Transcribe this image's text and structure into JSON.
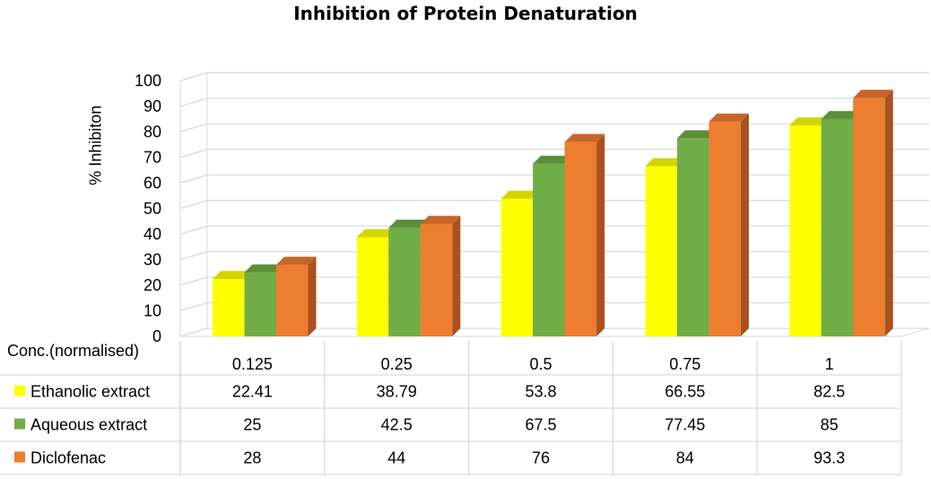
{
  "chart_data": {
    "type": "bar",
    "title": "Inhibition of Protein Denaturation",
    "xlabel": "Conc.(normalised)",
    "ylabel": "% Inhibiton",
    "ylim": [
      0,
      100
    ],
    "yticks": [
      "0",
      "10",
      "20",
      "30",
      "40",
      "50",
      "60",
      "70",
      "80",
      "90",
      "100"
    ],
    "categories": [
      "0.125",
      "0.25",
      "0.5",
      "0.75",
      "1"
    ],
    "series": [
      {
        "name": "Ethanolic extract",
        "values": [
          22.41,
          38.79,
          53.8,
          66.55,
          82.5
        ],
        "labels": [
          "22.41",
          "38.79",
          "53.8",
          "66.55",
          "82.5"
        ],
        "color": "#FFFF00",
        "top": "#D4D400",
        "side": "#A8A800"
      },
      {
        "name": "Aqueous extract",
        "values": [
          25,
          42.5,
          67.5,
          77.45,
          85
        ],
        "labels": [
          "25",
          "42.5",
          "67.5",
          "77.45",
          "85"
        ],
        "color": "#70AD47",
        "top": "#5B8F38",
        "side": "#4A7A2E"
      },
      {
        "name": "Diclofenac",
        "values": [
          28,
          44,
          76,
          84,
          93.3
        ],
        "labels": [
          "28",
          "44",
          "76",
          "84",
          "93.3"
        ],
        "color": "#ED7D31",
        "top": "#C8652A",
        "side": "#A8521F"
      }
    ]
  }
}
